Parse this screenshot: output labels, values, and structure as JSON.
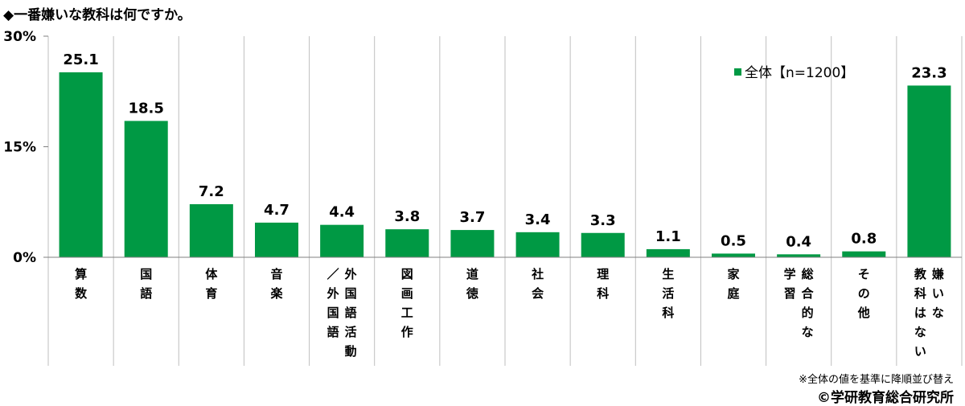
{
  "title": "◆一番嫌いな教科は何ですか。",
  "note": "※全体の値を基準に降順並び替え",
  "copyright": "©学研教育総合研究所",
  "colors": {
    "bar": "#009944",
    "grid": "#bfbfbf",
    "axis": "#808080"
  },
  "chart_data": {
    "type": "bar",
    "categories": [
      "算数",
      "国語",
      "体育",
      "音楽",
      "外国語活動／外国語",
      "図画工作",
      "道徳",
      "社会",
      "理科",
      "生活科",
      "家庭",
      "総合的な学習",
      "その他",
      "嫌いな教科はない"
    ],
    "category_columns": [
      [
        "算数"
      ],
      [
        "国語"
      ],
      [
        "体育"
      ],
      [
        "音楽"
      ],
      [
        "外国語活動",
        "／外国語"
      ],
      [
        "図画工作"
      ],
      [
        "道徳"
      ],
      [
        "社会"
      ],
      [
        "理科"
      ],
      [
        "生活科"
      ],
      [
        "家庭"
      ],
      [
        "総合的な",
        "学習"
      ],
      [
        "その他"
      ],
      [
        "嫌いな",
        "教科はない"
      ]
    ],
    "series": [
      {
        "name": "全体【n=1200】",
        "values": [
          25.1,
          18.5,
          7.2,
          4.7,
          4.4,
          3.8,
          3.7,
          3.4,
          3.3,
          1.1,
          0.5,
          0.4,
          0.8,
          23.3
        ]
      }
    ],
    "value_labels": [
      "25.1",
      "18.5",
      "7.2",
      "4.7",
      "4.4",
      "3.8",
      "3.7",
      "3.4",
      "3.3",
      "1.1",
      "0.5",
      "0.4",
      "0.8",
      "23.3"
    ],
    "ylim": [
      0,
      30
    ],
    "yticks": [
      0,
      15,
      30
    ],
    "ytick_labels": [
      "0%",
      "15%",
      "30%"
    ],
    "legend": {
      "label": "全体【n=1200】",
      "position": "top-right"
    },
    "grid": "vertical separators"
  }
}
